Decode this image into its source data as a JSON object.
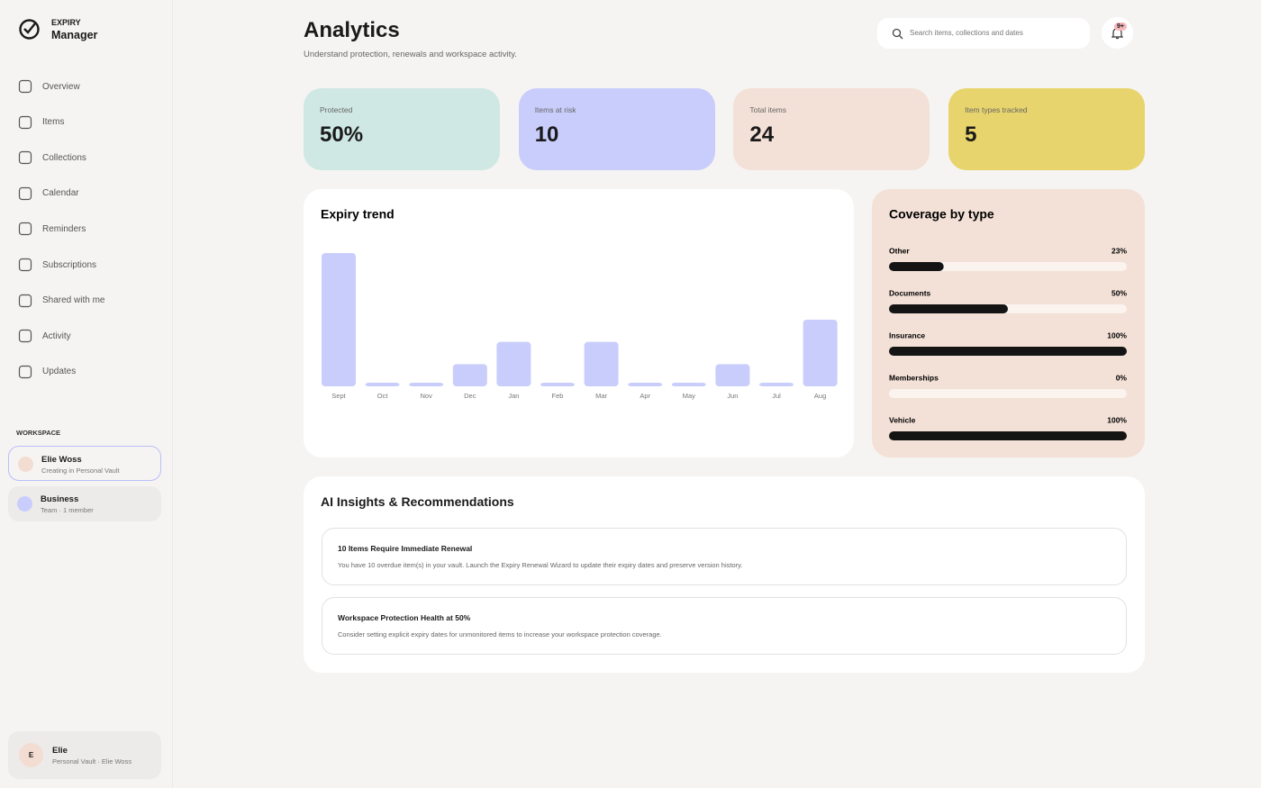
{
  "brand": {
    "top": "EXPIRY",
    "name": "Manager"
  },
  "nav": [
    "Overview",
    "Items",
    "Collections",
    "Calendar",
    "Reminders",
    "Subscriptions",
    "Shared with me",
    "Activity",
    "Updates"
  ],
  "workspace": {
    "heading": "WORKSPACE",
    "items": [
      {
        "name": "Elie Woss",
        "sub": "Creating in Personal Vault"
      },
      {
        "name": "Business",
        "sub": "Team · 1 member"
      }
    ]
  },
  "user": {
    "initial": "E",
    "name": "Elie",
    "sub": "Personal Vault · Elie Woss"
  },
  "header": {
    "title": "Analytics",
    "subtitle": "Understand protection, renewals and workspace activity.",
    "search_placeholder": "Search items, collections and dates",
    "badge": "9+"
  },
  "stats": [
    {
      "label": "Protected",
      "value": "50%",
      "color": "#cfe8e3"
    },
    {
      "label": "Items at risk",
      "value": "10",
      "color": "#c9cdfb"
    },
    {
      "label": "Total items",
      "value": "24",
      "color": "#f3e1d7"
    },
    {
      "label": "Item types tracked",
      "value": "5",
      "color": "#e8d46c"
    }
  ],
  "chart_data": [
    {
      "type": "bar",
      "title": "Expiry trend",
      "categories": [
        "Sept",
        "Oct",
        "Nov",
        "Dec",
        "Jan",
        "Feb",
        "Mar",
        "Apr",
        "May",
        "Jun",
        "Jul",
        "Aug"
      ],
      "values": [
        6,
        0,
        0,
        1,
        2,
        0,
        2,
        0,
        0,
        1,
        0,
        3
      ],
      "color": "#c9cdfb"
    },
    {
      "type": "progress",
      "title": "Coverage by type",
      "categories": [
        "Other",
        "Documents",
        "Insurance",
        "Memberships",
        "Vehicle"
      ],
      "values": [
        23,
        50,
        100,
        0,
        100
      ],
      "value_labels": [
        "23%",
        "50%",
        "100%",
        "0%",
        "100%"
      ],
      "xlim": [
        0,
        100
      ],
      "color": "#141414"
    }
  ],
  "insights": {
    "title": "AI Insights & Recommendations",
    "items": [
      {
        "title": "10 Items Require Immediate Renewal",
        "text": "You have 10 overdue item(s) in your vault. Launch the Expiry Renewal Wizard to update their expiry dates and preserve version history."
      },
      {
        "title": "Workspace Protection Health at 50%",
        "text": "Consider setting explicit expiry dates for unmonitored items to increase your workspace protection coverage."
      }
    ]
  }
}
